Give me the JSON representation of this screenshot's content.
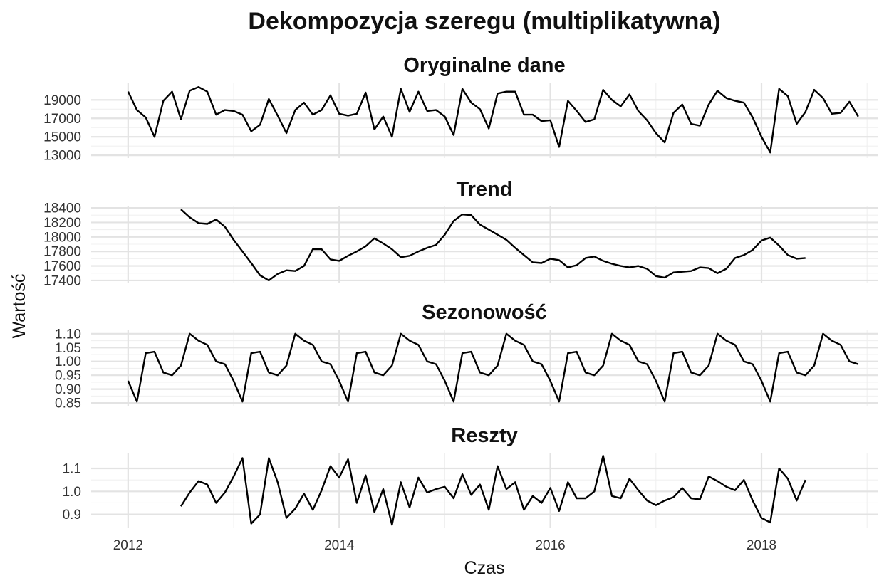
{
  "chart_data": {
    "type": "line",
    "title": "Dekompozycja szeregu (multiplikatywna)",
    "xlabel": "Czas",
    "ylabel": "Wartość",
    "xlim": [
      2011.65,
      2019.1
    ],
    "x_ticks": [
      2012,
      2014,
      2016,
      2018
    ],
    "grid": true,
    "x_start": 2012,
    "x_step": 0.08333,
    "panels": [
      {
        "name": "observed",
        "title": "Oryginalne dane",
        "ylim": [
          12700,
          20800
        ],
        "y_ticks": [
          13000,
          15000,
          17000,
          19000
        ],
        "values": [
          19900,
          17900,
          17100,
          15000,
          18900,
          19900,
          16900,
          20000,
          20400,
          19900,
          17400,
          17900,
          17800,
          17400,
          15600,
          16300,
          19100,
          17300,
          15400,
          17900,
          18700,
          17400,
          17900,
          19500,
          17500,
          17300,
          17500,
          19800,
          15800,
          17200,
          15000,
          20200,
          17700,
          19900,
          17800,
          17900,
          17200,
          15200,
          20200,
          18700,
          18000,
          15900,
          19700,
          19900,
          19900,
          17400,
          17400,
          16700,
          16800,
          13900,
          18900,
          17800,
          16600,
          16900,
          20100,
          19000,
          18300,
          19600,
          17800,
          16800,
          15400,
          14400,
          17600,
          18500,
          16400,
          16200,
          18500,
          20000,
          19200,
          18900,
          18700,
          17100,
          15000,
          13300,
          20200,
          19400,
          16400,
          17700,
          20100,
          19200,
          17500,
          17600,
          18800,
          17200
        ]
      },
      {
        "name": "trend",
        "title": "Trend",
        "ylim": [
          17370,
          18420
        ],
        "y_ticks": [
          17400,
          17600,
          17800,
          18000,
          18200,
          18400
        ],
        "offset": 6,
        "values": [
          18380,
          18270,
          18190,
          18180,
          18240,
          18140,
          17960,
          17800,
          17640,
          17470,
          17400,
          17490,
          17540,
          17530,
          17600,
          17830,
          17830,
          17690,
          17670,
          17740,
          17800,
          17870,
          17980,
          17910,
          17830,
          17720,
          17740,
          17800,
          17850,
          17890,
          18030,
          18220,
          18310,
          18300,
          18170,
          18100,
          18030,
          17960,
          17850,
          17750,
          17650,
          17640,
          17700,
          17680,
          17580,
          17610,
          17710,
          17730,
          17670,
          17630,
          17600,
          17580,
          17600,
          17560,
          17460,
          17440,
          17510,
          17520,
          17530,
          17580,
          17570,
          17500,
          17560,
          17710,
          17750,
          17820,
          17950,
          17990,
          17880,
          17750,
          17700,
          17710
        ]
      },
      {
        "name": "seasonal",
        "title": "Sezonowość",
        "ylim": [
          0.84,
          1.115
        ],
        "y_ticks": [
          0.85,
          0.9,
          0.95,
          1.0,
          1.05,
          1.1
        ],
        "y_tick_labels": [
          "0.85",
          "0.90",
          "0.95",
          "1.00",
          "1.05",
          "1.10"
        ],
        "values": [
          0.93,
          0.855,
          1.03,
          1.035,
          0.96,
          0.95,
          0.985,
          1.1,
          1.075,
          1.06,
          1.0,
          0.99,
          0.93,
          0.855,
          1.03,
          1.035,
          0.96,
          0.95,
          0.985,
          1.1,
          1.075,
          1.06,
          1.0,
          0.99,
          0.93,
          0.855,
          1.03,
          1.035,
          0.96,
          0.95,
          0.985,
          1.1,
          1.075,
          1.06,
          1.0,
          0.99,
          0.93,
          0.855,
          1.03,
          1.035,
          0.96,
          0.95,
          0.985,
          1.1,
          1.075,
          1.06,
          1.0,
          0.99,
          0.93,
          0.855,
          1.03,
          1.035,
          0.96,
          0.95,
          0.985,
          1.1,
          1.075,
          1.06,
          1.0,
          0.99,
          0.93,
          0.855,
          1.03,
          1.035,
          0.96,
          0.95,
          0.985,
          1.1,
          1.075,
          1.06,
          1.0,
          0.99,
          0.93,
          0.855,
          1.03,
          1.035,
          0.96,
          0.95,
          0.985,
          1.1,
          1.075,
          1.06,
          1.0,
          0.99
        ]
      },
      {
        "name": "residual",
        "title": "Reszty",
        "ylim": [
          0.84,
          1.165
        ],
        "y_ticks": [
          0.9,
          1.0,
          1.1
        ],
        "y_tick_labels": [
          "0.9",
          "1.0",
          "1.1"
        ],
        "offset": 6,
        "values": [
          0.935,
          0.995,
          1.045,
          1.03,
          0.95,
          0.995,
          1.065,
          1.145,
          0.86,
          0.9,
          1.145,
          1.04,
          0.885,
          0.925,
          0.99,
          0.92,
          1.005,
          1.11,
          1.06,
          1.14,
          0.95,
          1.07,
          0.91,
          1.01,
          0.855,
          1.04,
          0.93,
          1.06,
          0.995,
          1.01,
          1.02,
          0.97,
          1.075,
          0.985,
          1.03,
          0.92,
          1.11,
          1.01,
          1.04,
          0.92,
          0.98,
          0.95,
          1.015,
          0.915,
          1.04,
          0.97,
          0.97,
          1.0,
          1.155,
          0.98,
          0.97,
          1.055,
          1.005,
          0.96,
          0.94,
          0.96,
          0.975,
          1.015,
          0.97,
          0.965,
          1.065,
          1.045,
          1.02,
          1.005,
          1.05,
          0.96,
          0.885,
          0.865,
          1.1,
          1.055,
          0.96,
          1.05
        ]
      }
    ]
  }
}
